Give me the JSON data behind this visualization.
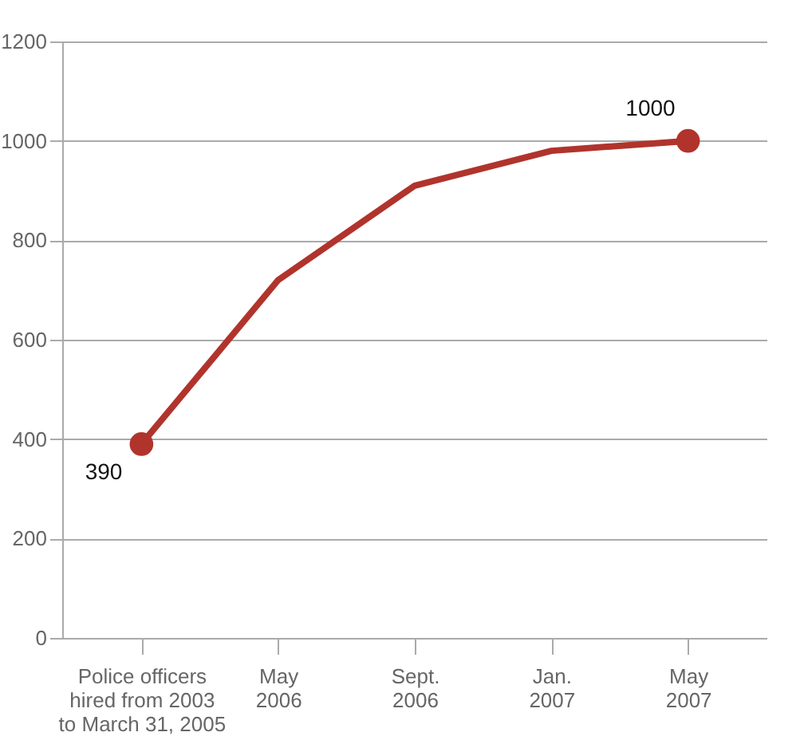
{
  "chart_data": {
    "type": "line",
    "categories": [
      "Police officers\nhired from 2003\nto March 31, 2005",
      "May\n2006",
      "Sept.\n2006",
      "Jan.\n2007",
      "May\n2007"
    ],
    "series": [
      {
        "color": "#b0342c",
        "values": [
          390,
          720,
          910,
          980,
          1000
        ],
        "value_labels": [
          "390",
          null,
          null,
          null,
          "1000"
        ]
      }
    ],
    "ylim": [
      0,
      1200
    ],
    "yticks": [
      0,
      200,
      400,
      600,
      800,
      1000,
      1200
    ],
    "grid": "y",
    "line_style": "solid"
  }
}
